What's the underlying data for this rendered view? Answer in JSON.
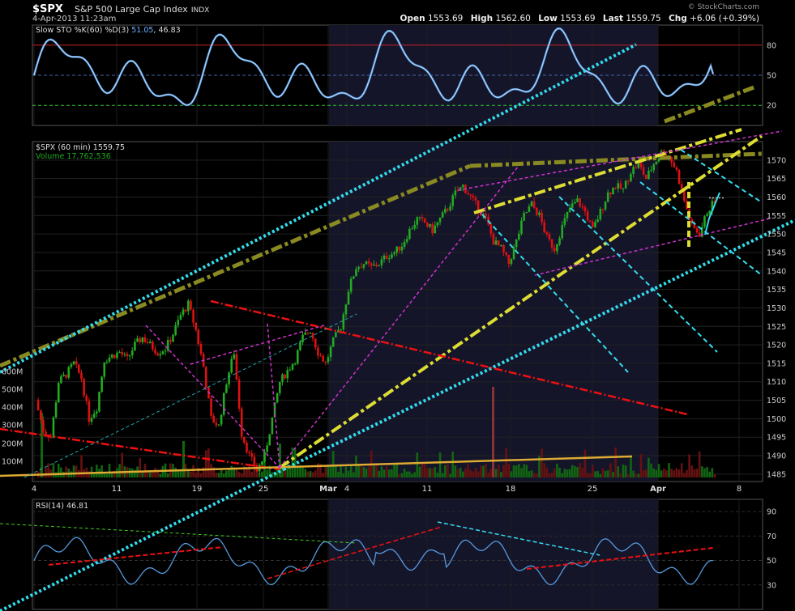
{
  "header": {
    "symbol": "$SPX",
    "name": "S&P 500 Large Cap Index",
    "exchange": "INDX",
    "datetime": "4-Apr-2013 11:23am",
    "brand": "© StockCharts.com",
    "open_label": "Open",
    "open": "1553.69",
    "high_label": "High",
    "high": "1562.60",
    "low_label": "Low",
    "low": "1553.69",
    "last_label": "Last",
    "last": "1559.75",
    "chg_label": "Chg",
    "chg": "+6.06 (+0.39%)"
  },
  "panels": {
    "sto_label": "Slow STO %K(60) %D(3)",
    "sto_k": "51.05",
    "sto_d": "46.83",
    "price_label": "$SPX (60 min) 1559.75",
    "volume_label": "Volume 17,762,536",
    "rsi_label": "RSI(14) 46.81"
  },
  "colors": {
    "background": "#000000",
    "shade": "#15152a",
    "up_candle": "#22aa22",
    "down_candle": "#dd1111",
    "cyan_trend": "#33ddee",
    "olive_trend": "#8a8a22",
    "yellow_trend": "#dddd33",
    "magenta_trend": "#cc33cc",
    "red_trend": "#ee1111",
    "orange_trend": "#ddaa33",
    "indicator_line": "#5599dd"
  },
  "chart_data": {
    "type": "candlestick",
    "interval": "60 min",
    "price_axis": {
      "min": 1483,
      "max": 1575,
      "ticks": [
        1485,
        1490,
        1495,
        1500,
        1505,
        1510,
        1515,
        1520,
        1525,
        1530,
        1535,
        1540,
        1545,
        1550,
        1555,
        1560,
        1565,
        1570
      ]
    },
    "volume_axis": {
      "ticks": [
        "100M",
        "200M",
        "300M",
        "400M",
        "500M",
        "600M"
      ]
    },
    "x_tick_labels": [
      "4",
      "11",
      "19",
      "25",
      "Mar",
      "4",
      "11",
      "18",
      "25",
      "Apr",
      "8"
    ],
    "price_path": [
      [
        0,
        1505
      ],
      [
        1,
        1497
      ],
      [
        2,
        1495
      ],
      [
        3,
        1510
      ],
      [
        4,
        1512
      ],
      [
        5,
        1515
      ],
      [
        6,
        1511
      ],
      [
        7,
        1500
      ],
      [
        8,
        1503
      ],
      [
        9,
        1516
      ],
      [
        10,
        1517
      ],
      [
        11,
        1518
      ],
      [
        12,
        1516
      ],
      [
        13,
        1520
      ],
      [
        14,
        1522
      ],
      [
        15,
        1520
      ],
      [
        16,
        1518
      ],
      [
        17,
        1519
      ],
      [
        18,
        1523
      ],
      [
        19,
        1528
      ],
      [
        20,
        1531
      ],
      [
        21,
        1524
      ],
      [
        22,
        1514
      ],
      [
        23,
        1500
      ],
      [
        24,
        1498
      ],
      [
        25,
        1510
      ],
      [
        26,
        1518
      ],
      [
        27,
        1496
      ],
      [
        28,
        1490
      ],
      [
        29,
        1486
      ],
      [
        30,
        1490
      ],
      [
        31,
        1500
      ],
      [
        32,
        1510
      ],
      [
        33,
        1513
      ],
      [
        34,
        1516
      ],
      [
        35,
        1522
      ],
      [
        36,
        1524
      ],
      [
        37,
        1518
      ],
      [
        38,
        1515
      ],
      [
        39,
        1521
      ],
      [
        40,
        1525
      ],
      [
        41,
        1535
      ],
      [
        42,
        1541
      ],
      [
        43,
        1542
      ],
      [
        44,
        1541
      ],
      [
        45,
        1542
      ],
      [
        46,
        1544
      ],
      [
        47,
        1545
      ],
      [
        48,
        1547
      ],
      [
        49,
        1551
      ],
      [
        50,
        1554
      ],
      [
        51,
        1553
      ],
      [
        52,
        1551
      ],
      [
        53,
        1554
      ],
      [
        54,
        1557
      ],
      [
        55,
        1561
      ],
      [
        56,
        1563
      ],
      [
        57,
        1560
      ],
      [
        58,
        1557
      ],
      [
        59,
        1554
      ],
      [
        60,
        1548
      ],
      [
        61,
        1546
      ],
      [
        62,
        1542
      ],
      [
        63,
        1548
      ],
      [
        64,
        1555
      ],
      [
        65,
        1558
      ],
      [
        66,
        1555
      ],
      [
        67,
        1549
      ],
      [
        68,
        1546
      ],
      [
        69,
        1552
      ],
      [
        70,
        1557
      ],
      [
        71,
        1559
      ],
      [
        72,
        1556
      ],
      [
        73,
        1551
      ],
      [
        74,
        1556
      ],
      [
        75,
        1561
      ],
      [
        76,
        1563
      ],
      [
        77,
        1562
      ],
      [
        78,
        1567
      ],
      [
        79,
        1569
      ],
      [
        80,
        1565
      ],
      [
        81,
        1569
      ],
      [
        82,
        1572
      ],
      [
        83,
        1571
      ],
      [
        84,
        1567
      ],
      [
        85,
        1559
      ],
      [
        86,
        1552
      ],
      [
        87,
        1550
      ],
      [
        88,
        1556
      ],
      [
        89,
        1559
      ]
    ],
    "last": 1559.75,
    "sto": {
      "levels": [
        20,
        50,
        80
      ],
      "k": 51.05,
      "d": 46.83
    },
    "rsi": {
      "levels": [
        30,
        50,
        70,
        90
      ],
      "value": 46.81
    }
  }
}
